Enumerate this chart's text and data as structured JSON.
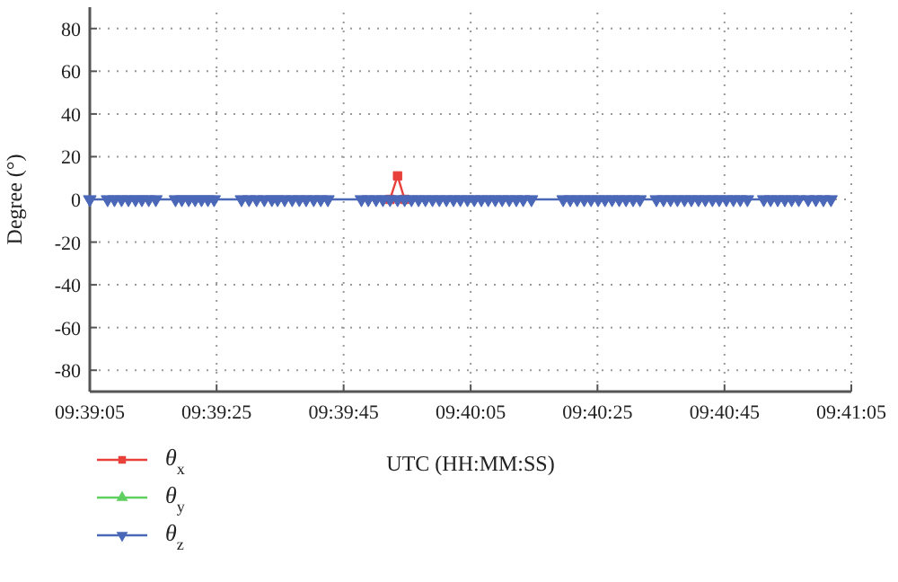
{
  "chart_data": {
    "type": "line",
    "xlabel": "UTC (HH:MM:SS)",
    "ylabel": "Degree (°)",
    "x": [
      9.65139,
      9.65217,
      9.65247,
      9.65278,
      9.65308,
      9.65339,
      9.65367,
      9.65397,
      9.65428,
      9.65514,
      9.65542,
      9.65572,
      9.656,
      9.65628,
      9.65656,
      9.65683,
      9.65803,
      9.65836,
      9.65869,
      9.65903,
      9.65936,
      9.65961,
      9.65992,
      9.66025,
      9.66056,
      9.66086,
      9.66119,
      9.6615,
      9.66181,
      9.66328,
      9.66358,
      9.66392,
      9.66422,
      9.66453,
      9.66486,
      9.66517,
      9.66547,
      9.66578,
      9.66608,
      9.66639,
      9.66669,
      9.667,
      9.66731,
      9.66761,
      9.66792,
      9.66822,
      9.66853,
      9.66883,
      9.66914,
      9.66944,
      9.66975,
      9.67006,
      9.67036,
      9.67072,
      9.67211,
      9.67242,
      9.67272,
      9.67303,
      9.67333,
      9.67364,
      9.67394,
      9.67425,
      9.67456,
      9.67486,
      9.67517,
      9.67547,
      9.67619,
      9.6765,
      9.67681,
      9.67711,
      9.67742,
      9.67772,
      9.67803,
      9.67833,
      9.67864,
      9.67894,
      9.67925,
      9.67956,
      9.67986,
      9.68017,
      9.68089,
      9.68119,
      9.6815,
      9.68181,
      9.68211,
      9.68242,
      9.68283,
      9.68317,
      9.6835,
      9.68383
    ],
    "series": [
      {
        "name": "θ$_{x}$",
        "color": "#e8413c",
        "marker": "square",
        "values": [
          null,
          null,
          null,
          null,
          null,
          null,
          null,
          null,
          null,
          null,
          null,
          null,
          null,
          null,
          null,
          null,
          null,
          null,
          null,
          null,
          null,
          null,
          null,
          null,
          null,
          null,
          null,
          null,
          null,
          null,
          null,
          null,
          null,
          0,
          11,
          0,
          null,
          null,
          null,
          null,
          null,
          null,
          null,
          null,
          null,
          null,
          null,
          null,
          null,
          null,
          null,
          null,
          null,
          null,
          null,
          null,
          null,
          null,
          null,
          null,
          null,
          null,
          null,
          null,
          null,
          null,
          null,
          null,
          null,
          null,
          null,
          null,
          null,
          null,
          null,
          null,
          null,
          null,
          null,
          null,
          null,
          null,
          null,
          null,
          null,
          null,
          null,
          null,
          null,
          null
        ]
      },
      {
        "name": "θ$_{y}$",
        "color": "#5fcf5f",
        "marker": "triangle",
        "values": [
          null,
          null,
          null,
          null,
          null,
          null,
          null,
          null,
          null,
          null,
          null,
          null,
          null,
          null,
          null,
          null,
          null,
          null,
          null,
          null,
          null,
          null,
          null,
          null,
          null,
          null,
          null,
          null,
          null,
          null,
          null,
          null,
          null,
          null,
          null,
          null,
          null,
          null,
          null,
          null,
          null,
          null,
          null,
          null,
          null,
          null,
          null,
          null,
          null,
          null,
          null,
          null,
          null,
          null,
          null,
          null,
          null,
          null,
          null,
          null,
          null,
          null,
          null,
          null,
          null,
          null,
          null,
          null,
          null,
          null,
          null,
          null,
          null,
          null,
          null,
          null,
          null,
          null,
          null,
          null,
          null,
          null,
          null,
          null,
          null,
          null,
          null,
          null,
          null,
          null
        ]
      },
      {
        "name": "θ$_{z}$",
        "color": "#4a67b8",
        "marker": "triangle-down",
        "values": [
          0,
          0,
          0,
          0,
          0,
          0,
          0,
          0,
          0,
          0,
          0,
          0,
          0,
          0,
          0,
          0,
          0,
          0,
          0,
          0,
          0,
          0,
          0,
          0,
          0,
          0,
          0,
          0,
          0,
          0,
          0,
          0,
          0,
          0,
          0,
          0,
          0,
          0,
          0,
          0,
          0,
          0,
          0,
          0,
          0,
          0,
          0,
          0,
          0,
          0,
          0,
          0,
          0,
          0,
          0,
          0,
          0,
          0,
          0,
          0,
          0,
          0,
          0,
          0,
          0,
          0,
          0,
          0,
          0,
          0,
          0,
          0,
          0,
          0,
          0,
          0,
          0,
          0,
          0,
          0,
          0,
          0,
          0,
          0,
          0,
          0,
          0,
          0,
          0,
          0
        ]
      }
    ],
    "xlim": [
      9.65139,
      9.68472
    ],
    "xticks": [
      {
        "value": 9.65139,
        "label": "09:39:05"
      },
      {
        "value": 9.65694,
        "label": "09:39:25"
      },
      {
        "value": 9.6625,
        "label": "09:39:45"
      },
      {
        "value": 9.66806,
        "label": "09:40:05"
      },
      {
        "value": 9.67361,
        "label": "09:40:25"
      },
      {
        "value": 9.67917,
        "label": "09:40:45"
      },
      {
        "value": 9.68472,
        "label": "09:41:05"
      }
    ],
    "ylim": [
      -90,
      90
    ],
    "yticks": [
      -80,
      -60,
      -40,
      -20,
      0,
      20,
      40,
      60,
      80
    ],
    "grid": true,
    "legend": "bottom left",
    "line_style": "solid"
  }
}
